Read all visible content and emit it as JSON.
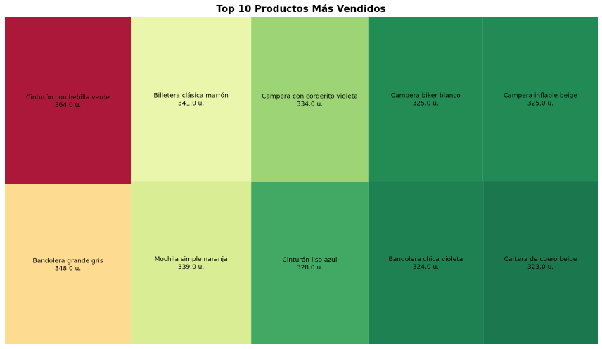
{
  "chart_data": {
    "type": "treemap",
    "title": "Top 10 Productos Más Vendidos",
    "unit_suffix": " u.",
    "items": [
      {
        "label": "Cinturón con hebilla verde",
        "value": 364.0,
        "value_text": "364.0 u.",
        "color": "#ab1839"
      },
      {
        "label": "Bandolera grande gris",
        "value": 348.0,
        "value_text": "348.0 u.",
        "color": "#fddb91"
      },
      {
        "label": "Billetera clásica marrón",
        "value": 341.0,
        "value_text": "341.0 u.",
        "color": "#eaf6ab"
      },
      {
        "label": "Mochila simple naranja",
        "value": 339.0,
        "value_text": "339.0 u.",
        "color": "#d8ed94"
      },
      {
        "label": "Campera con corderito violeta",
        "value": 334.0,
        "value_text": "334.0 u.",
        "color": "#9cd476"
      },
      {
        "label": "Cinturón liso azul",
        "value": 328.0,
        "value_text": "328.0 u.",
        "color": "#42a964"
      },
      {
        "label": "Campera biker blanco",
        "value": 325.0,
        "value_text": "325.0 u.",
        "color": "#238c55"
      },
      {
        "label": "Campera inflable beige",
        "value": 325.0,
        "value_text": "325.0 u.",
        "color": "#228b55"
      },
      {
        "label": "Bandolera chica violeta",
        "value": 324.0,
        "value_text": "324.0 u.",
        "color": "#1d8152"
      },
      {
        "label": "Cartera de cuero beige",
        "value": 323.0,
        "value_text": "323.0 u.",
        "color": "#1b774e"
      }
    ]
  }
}
